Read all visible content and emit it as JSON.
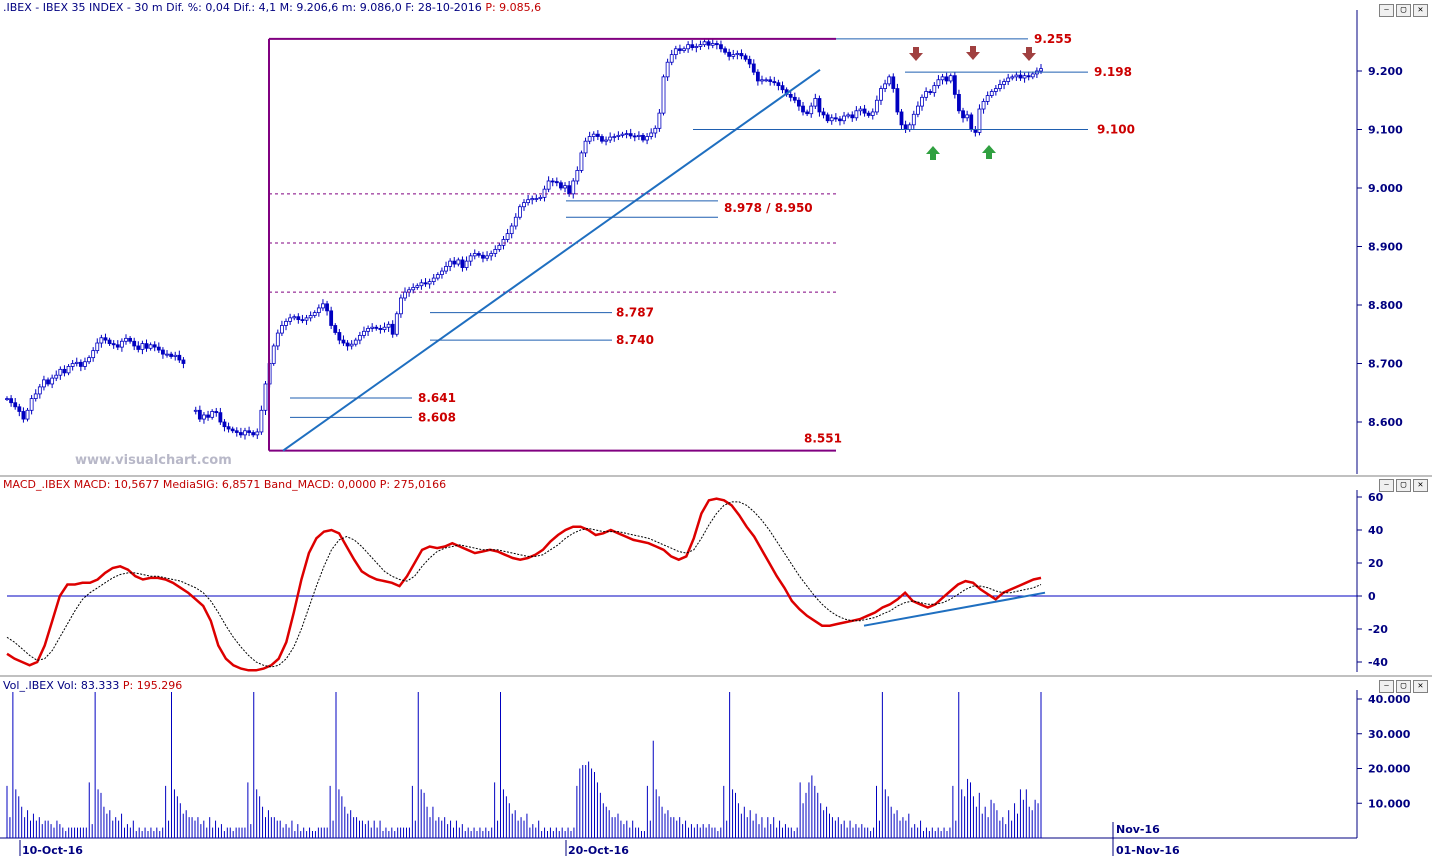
{
  "header": {
    "price": {
      "text": ".IBEX - IBEX 35 INDEX - 30 m Dif. %: 0,04 Dif.: 4,1 M: 9.206,6 m: 9.086,0 F: 28-10-2016",
      "p_text": "P: 9.085,6"
    },
    "macd": {
      "text": "MACD_.IBEX MACD: 10,5677 MediaSIG: 6,8571 Band_MACD: 0,0000",
      "p_text": "P: 275,0166"
    },
    "vol": {
      "text": "Vol_.IBEX Vol: 83.333",
      "p_text": "P: 195.296"
    }
  },
  "watermark": "www.visualchart.com",
  "window_buttons": [
    "⎯",
    "▢",
    "✕"
  ],
  "colors": {
    "price_bars": "#0000c0",
    "level_lines": "#1f5fb0",
    "fib_box": "#800080",
    "level_labels": "#cc0000",
    "macd_line": "#dd0000",
    "signal_line": "#000000",
    "axis_text": "#000080",
    "volume": "#0000c0",
    "arrow_down": "#a04040",
    "arrow_up": "#30a040"
  },
  "chart_data": [
    {
      "type": "candlestick",
      "title": ".IBEX - IBEX 35 INDEX - 30 m",
      "y_ticks": [
        "9.200",
        "9.100",
        "9.000",
        "8.900",
        "8.800",
        "8.700",
        "8.600"
      ],
      "y_tick_values": [
        9200,
        9100,
        9000,
        8900,
        8800,
        8700,
        8600
      ],
      "ylim": [
        8540,
        9290
      ],
      "x_labels": [
        "10-Oct-16",
        "20-Oct-16",
        "Nov-16",
        "01-Nov-16"
      ],
      "close_series": [
        8640,
        8633,
        8626,
        8618,
        8605,
        8620,
        8640,
        8648,
        8660,
        8672,
        8665,
        8675,
        8680,
        8690,
        8684,
        8695,
        8700,
        8702,
        8695,
        8703,
        8710,
        8722,
        8735,
        8744,
        8740,
        8734,
        8732,
        8728,
        8738,
        8743,
        8738,
        8730,
        8724,
        8734,
        8726,
        8732,
        8728,
        8723,
        8716,
        8716,
        8712,
        8714,
        8706,
        8700,
        null,
        null,
        8620,
        8605,
        8612,
        8608,
        8618,
        8616,
        8600,
        8592,
        8588,
        8585,
        8582,
        8578,
        8585,
        8582,
        8578,
        8583,
        8620,
        8665,
        8700,
        8730,
        8752,
        8765,
        8772,
        8778,
        8780,
        8775,
        8774,
        8778,
        8782,
        8787,
        8795,
        8802,
        8790,
        8765,
        8753,
        8740,
        8735,
        8730,
        8733,
        8740,
        8748,
        8755,
        8760,
        8762,
        8760,
        8758,
        8762,
        8767,
        8750,
        8785,
        8812,
        8822,
        8826,
        8830,
        8833,
        8838,
        8836,
        8840,
        8846,
        8852,
        8858,
        8866,
        8875,
        8870,
        8877,
        8864,
        8875,
        8884,
        8888,
        8885,
        8880,
        8884,
        8888,
        8895,
        8902,
        8912,
        8922,
        8935,
        8950,
        8968,
        8975,
        8980,
        8982,
        8982,
        8984,
        8998,
        9012,
        9011,
        9009,
        9000,
        9004,
        8990,
        9012,
        9030,
        9060,
        9080,
        9088,
        9092,
        9088,
        9080,
        9082,
        9087,
        9088,
        9090,
        9092,
        9093,
        9089,
        9088,
        9090,
        9082,
        9088,
        9094,
        9102,
        9128,
        9190,
        9215,
        9228,
        9238,
        9235,
        9238,
        9245,
        9240,
        9242,
        9245,
        9250,
        9244,
        9247,
        9245,
        9238,
        9232,
        9225,
        9228,
        9230,
        9226,
        9220,
        9212,
        9198,
        9183,
        9185,
        9185,
        9182,
        9180,
        9175,
        9168,
        9160,
        9155,
        9150,
        9140,
        9130,
        9127,
        9140,
        9153,
        9130,
        9125,
        9115,
        9120,
        9118,
        9115,
        9123,
        9125,
        9120,
        9132,
        9135,
        9128,
        9124,
        9130,
        9150,
        9170,
        9178,
        9190,
        9170,
        9130,
        9108,
        9100,
        9108,
        9126,
        9140,
        9155,
        9165,
        9163,
        9175,
        9185,
        9190,
        9183,
        9192,
        9160,
        9132,
        9120,
        9125,
        9100,
        9095,
        9135,
        9148,
        9158,
        9165,
        9170,
        9177,
        9182,
        9188,
        9190,
        9193,
        9188,
        9192,
        9190,
        9195,
        9200,
        9204
      ],
      "fib_range": {
        "high": 9255,
        "low": 8551
      },
      "levels": [
        {
          "label": "9.255",
          "value": 9255
        },
        {
          "label": "9.198",
          "value": 9198
        },
        {
          "label": "9.100",
          "value": 9100
        },
        {
          "label": "8.978 / 8.950",
          "values": [
            8978,
            8950
          ]
        },
        {
          "label": "8.787",
          "value": 8787
        },
        {
          "label": "8.740",
          "value": 8740
        },
        {
          "label": "8.641",
          "value": 8641
        },
        {
          "label": "8.608",
          "value": 8608
        },
        {
          "label": "8.551",
          "value": 8551
        }
      ],
      "fib_retracements": [
        8990,
        8906,
        8822
      ]
    },
    {
      "type": "line",
      "title": "MACD_.IBEX",
      "y_ticks": [
        "60",
        "40",
        "20",
        "0",
        "-20",
        "-40"
      ],
      "y_tick_values": [
        60,
        40,
        20,
        0,
        -20,
        -40
      ],
      "ylim": [
        -48,
        62
      ],
      "series": [
        {
          "name": "MACD",
          "values": [
            -35,
            -38,
            -40,
            -42,
            -40,
            -30,
            -15,
            0,
            7,
            7,
            8,
            8,
            10,
            14,
            17,
            18,
            16,
            12,
            10,
            11,
            11,
            10,
            8,
            5,
            2,
            -2,
            -6,
            -15,
            -30,
            -38,
            -42,
            -44,
            -45,
            -45,
            -44,
            -42,
            -38,
            -28,
            -10,
            10,
            26,
            35,
            39,
            40,
            38,
            30,
            22,
            15,
            12,
            10,
            9,
            8,
            6,
            12,
            20,
            28,
            30,
            29,
            30,
            32,
            30,
            28,
            26,
            27,
            28,
            27,
            25,
            23,
            22,
            23,
            25,
            28,
            33,
            37,
            40,
            42,
            42,
            40,
            37,
            38,
            40,
            38,
            36,
            34,
            33,
            32,
            30,
            28,
            24,
            22,
            24,
            35,
            50,
            58,
            59,
            58,
            55,
            49,
            42,
            36,
            28,
            20,
            12,
            5,
            -3,
            -8,
            -12,
            -15,
            -18,
            -18,
            -17,
            -16,
            -15,
            -14,
            -12,
            -10,
            -7,
            -5,
            -2,
            2,
            -3,
            -5,
            -7,
            -5,
            -1,
            3,
            7,
            9,
            8,
            4,
            1,
            -2,
            2,
            4,
            6,
            8,
            10,
            11
          ]
        },
        {
          "name": "MediaSIG",
          "values": [
            -25,
            -28,
            -32,
            -36,
            -39,
            -38,
            -33,
            -25,
            -17,
            -9,
            -2,
            2,
            5,
            8,
            11,
            13,
            14,
            14,
            13,
            12,
            12,
            11,
            10,
            9,
            7,
            5,
            2,
            -3,
            -10,
            -18,
            -25,
            -31,
            -36,
            -40,
            -42,
            -43,
            -42,
            -38,
            -31,
            -20,
            -7,
            6,
            18,
            28,
            34,
            36,
            34,
            30,
            25,
            20,
            15,
            12,
            10,
            9,
            12,
            18,
            23,
            27,
            29,
            30,
            31,
            30,
            29,
            28,
            28,
            28,
            27,
            26,
            25,
            24,
            24,
            25,
            28,
            31,
            35,
            38,
            40,
            41,
            40,
            39,
            39,
            39,
            38,
            37,
            36,
            35,
            33,
            31,
            29,
            27,
            26,
            28,
            35,
            43,
            50,
            55,
            57,
            57,
            55,
            51,
            46,
            40,
            33,
            26,
            19,
            12,
            6,
            0,
            -5,
            -9,
            -12,
            -14,
            -15,
            -15,
            -14,
            -13,
            -11,
            -9,
            -6,
            -4,
            -3,
            -4,
            -5,
            -5,
            -4,
            -2,
            1,
            4,
            6,
            6,
            5,
            3,
            2,
            2,
            3,
            4,
            5,
            7
          ]
        }
      ],
      "trendline_from": -18,
      "trendline_to": 2
    },
    {
      "type": "bar",
      "title": "Vol_.IBEX",
      "y_ticks": [
        "40.000",
        "30.000",
        "20.000",
        "10.000"
      ],
      "y_tick_values": [
        40000,
        30000,
        20000,
        10000
      ],
      "ylim": [
        0,
        42000
      ],
      "values": [
        15000,
        6000,
        42000,
        14000,
        12000,
        9000,
        6000,
        8000,
        5000,
        7000,
        5000,
        6000,
        4000,
        5000,
        5000,
        4000,
        3000,
        5000,
        4000,
        3000,
        2000,
        3000,
        3000,
        3000,
        3000,
        3000,
        3000,
        3000,
        16000,
        4000,
        42000,
        14000,
        13000,
        9000,
        7000,
        8000,
        5000,
        6000,
        5000,
        7000,
        3000,
        4000,
        3000,
        5000,
        2000,
        3000,
        2000,
        3000,
        2000,
        3000,
        2000,
        3000,
        2000,
        3000,
        15000,
        5000,
        42000,
        14000,
        12000,
        10000,
        7000,
        8000,
        6000,
        6000,
        5000,
        6000,
        4000,
        5000,
        3000,
        6000,
        3000,
        5000,
        3000,
        4000,
        2000,
        3000,
        3000,
        2000,
        3000,
        3000,
        3000,
        3000,
        16000,
        4000,
        42000,
        14000,
        12000,
        9000,
        6000,
        8000,
        6000,
        6000,
        5000,
        5000,
        3000,
        4000,
        3000,
        5000,
        2000,
        4000,
        2000,
        3000,
        2000,
        3000,
        2000,
        2000,
        3000,
        3000,
        3000,
        3000,
        15000,
        5000,
        42000,
        14000,
        12000,
        9000,
        7000,
        8000,
        6000,
        6000,
        5000,
        5000,
        4000,
        5000,
        3000,
        5000,
        3000,
        5000,
        2000,
        3000,
        2000,
        3000,
        2000,
        3000,
        3000,
        3000,
        3000,
        3000,
        15000,
        5000,
        42000,
        14000,
        13000,
        9000,
        6000,
        9000,
        5000,
        6000,
        5000,
        6000,
        4000,
        5000,
        3000,
        5000,
        3000,
        4000,
        2000,
        3000,
        2000,
        3000,
        2000,
        3000,
        2000,
        3000,
        2000,
        3000,
        16000,
        5000,
        42000,
        14000,
        12000,
        10000,
        7000,
        8000,
        5000,
        6000,
        5000,
        7000,
        3000,
        4000,
        3000,
        5000,
        2000,
        3000,
        2000,
        3000,
        2000,
        3000,
        2000,
        3000,
        2000,
        3000,
        2000,
        3000,
        15000,
        20000,
        21000,
        21000,
        22000,
        20000,
        19000,
        16000,
        13000,
        10000,
        9000,
        8000,
        6000,
        6000,
        7000,
        5000,
        4000,
        5000,
        3000,
        5000,
        3000,
        3000,
        2000,
        2000,
        15000,
        5000,
        28000,
        14000,
        12000,
        9000,
        7000,
        8000,
        6000,
        6000,
        5000,
        6000,
        4000,
        5000,
        3000,
        4000,
        3000,
        4000,
        3000,
        4000,
        3000,
        4000,
        3000,
        3000,
        2000,
        3000,
        15000,
        5000,
        42000,
        14000,
        13000,
        10000,
        7000,
        9000,
        6000,
        8000,
        5000,
        7000,
        4000,
        6000,
        3000,
        6000,
        4000,
        6000,
        3000,
        5000,
        3000,
        4000,
        3000,
        3000,
        2000,
        3000,
        16000,
        10000,
        13000,
        16000,
        18000,
        15000,
        13000,
        10000,
        8000,
        9000,
        7000,
        6000,
        5000,
        6000,
        4000,
        5000,
        3000,
        5000,
        3000,
        4000,
        3000,
        4000,
        3000,
        3000,
        2000,
        3000,
        15000,
        5000,
        42000,
        14000,
        12000,
        9000,
        7000,
        8000,
        5000,
        6000,
        5000,
        7000,
        3000,
        4000,
        3000,
        5000,
        2000,
        3000,
        2000,
        3000,
        2000,
        3000,
        2000,
        3000,
        2000,
        3000,
        15000,
        5000,
        42000,
        14000,
        12000,
        17000,
        16000,
        12000,
        9000,
        13000,
        7000,
        9000,
        6000,
        11000,
        10000,
        8000,
        5000,
        6000,
        4000,
        8000,
        5000,
        10000,
        7000,
        14000,
        11000,
        14000,
        9000,
        8000,
        11000,
        10000,
        42000
      ]
    }
  ]
}
